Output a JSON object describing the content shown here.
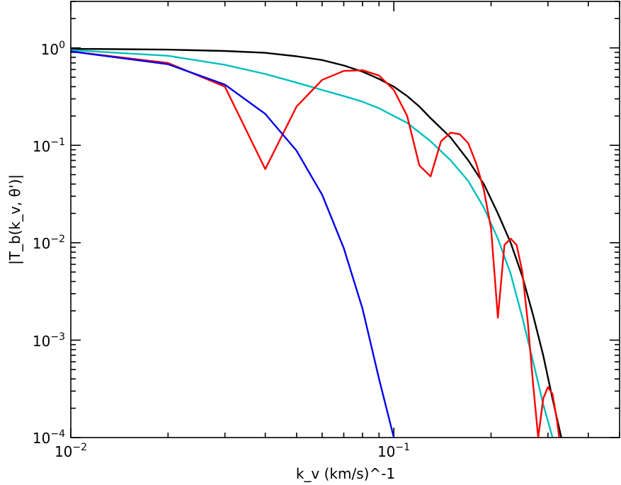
{
  "chart_data": {
    "type": "line",
    "title": "",
    "xlabel": "k_v (km/s)^-1",
    "ylabel": "|T_b(k_v, θ')|",
    "x_scale": "log",
    "y_scale": "log",
    "xlim": [
      0.01,
      0.5
    ],
    "ylim": [
      0.0001,
      3.0
    ],
    "grid": false,
    "x_tick_labels": [
      {
        "value": 0.01,
        "base": "10",
        "exp": "−2"
      },
      {
        "value": 0.1,
        "base": "10",
        "exp": "−1"
      }
    ],
    "y_tick_labels": [
      {
        "value": 1,
        "base": "10",
        "exp": "0"
      },
      {
        "value": 0.1,
        "base": "10",
        "exp": "−1"
      },
      {
        "value": 0.01,
        "base": "10",
        "exp": "−2"
      },
      {
        "value": 0.001,
        "base": "10",
        "exp": "−3"
      },
      {
        "value": 0.0001,
        "base": "10",
        "exp": "−4"
      }
    ],
    "series": [
      {
        "color": "#000000",
        "points": [
          [
            0.01,
            0.98
          ],
          [
            0.02,
            0.96
          ],
          [
            0.03,
            0.93
          ],
          [
            0.04,
            0.89
          ],
          [
            0.05,
            0.82
          ],
          [
            0.06,
            0.75
          ],
          [
            0.07,
            0.66
          ],
          [
            0.08,
            0.57
          ],
          [
            0.09,
            0.48
          ],
          [
            0.1,
            0.4
          ],
          [
            0.11,
            0.32
          ],
          [
            0.12,
            0.25
          ],
          [
            0.13,
            0.19
          ],
          [
            0.15,
            0.12
          ],
          [
            0.17,
            0.07
          ],
          [
            0.19,
            0.04
          ],
          [
            0.21,
            0.02
          ],
          [
            0.23,
            0.01
          ],
          [
            0.25,
            0.0045
          ],
          [
            0.27,
            0.0018
          ],
          [
            0.29,
            0.0007
          ],
          [
            0.31,
            0.00025
          ],
          [
            0.33,
            0.0001
          ]
        ]
      },
      {
        "color": "#00bfbf",
        "points": [
          [
            0.01,
            0.95
          ],
          [
            0.02,
            0.83
          ],
          [
            0.03,
            0.67
          ],
          [
            0.04,
            0.54
          ],
          [
            0.05,
            0.44
          ],
          [
            0.06,
            0.37
          ],
          [
            0.07,
            0.32
          ],
          [
            0.08,
            0.28
          ],
          [
            0.09,
            0.24
          ],
          [
            0.1,
            0.2
          ],
          [
            0.11,
            0.17
          ],
          [
            0.13,
            0.11
          ],
          [
            0.15,
            0.07
          ],
          [
            0.17,
            0.043
          ],
          [
            0.19,
            0.023
          ],
          [
            0.21,
            0.011
          ],
          [
            0.23,
            0.0048
          ],
          [
            0.25,
            0.0017
          ],
          [
            0.27,
            0.0006
          ],
          [
            0.29,
            0.00022
          ],
          [
            0.31,
            0.0001
          ]
        ]
      },
      {
        "color": "#ff0000",
        "points": [
          [
            0.01,
            0.92
          ],
          [
            0.02,
            0.7
          ],
          [
            0.03,
            0.4
          ],
          [
            0.04,
            0.057
          ],
          [
            0.05,
            0.25
          ],
          [
            0.06,
            0.47
          ],
          [
            0.07,
            0.58
          ],
          [
            0.08,
            0.59
          ],
          [
            0.09,
            0.52
          ],
          [
            0.1,
            0.37
          ],
          [
            0.11,
            0.2
          ],
          [
            0.12,
            0.062
          ],
          [
            0.13,
            0.048
          ],
          [
            0.14,
            0.11
          ],
          [
            0.15,
            0.135
          ],
          [
            0.16,
            0.13
          ],
          [
            0.17,
            0.105
          ],
          [
            0.18,
            0.065
          ],
          [
            0.19,
            0.035
          ],
          [
            0.2,
            0.014
          ],
          [
            0.21,
            0.0017
          ],
          [
            0.22,
            0.0095
          ],
          [
            0.23,
            0.011
          ],
          [
            0.24,
            0.0095
          ],
          [
            0.25,
            0.005
          ],
          [
            0.26,
            0.0015
          ],
          [
            0.27,
            0.00035
          ],
          [
            0.28,
            0.0001
          ],
          [
            0.29,
            0.00025
          ],
          [
            0.3,
            0.00033
          ],
          [
            0.31,
            0.00028
          ],
          [
            0.32,
            0.00015
          ],
          [
            0.325,
            0.0001
          ]
        ]
      },
      {
        "color": "#0000ee",
        "points": [
          [
            0.01,
            0.92
          ],
          [
            0.02,
            0.68
          ],
          [
            0.03,
            0.42
          ],
          [
            0.04,
            0.21
          ],
          [
            0.05,
            0.088
          ],
          [
            0.06,
            0.031
          ],
          [
            0.07,
            0.0088
          ],
          [
            0.08,
            0.0021
          ],
          [
            0.09,
            0.0004
          ],
          [
            0.1,
            0.0001
          ]
        ]
      }
    ]
  }
}
